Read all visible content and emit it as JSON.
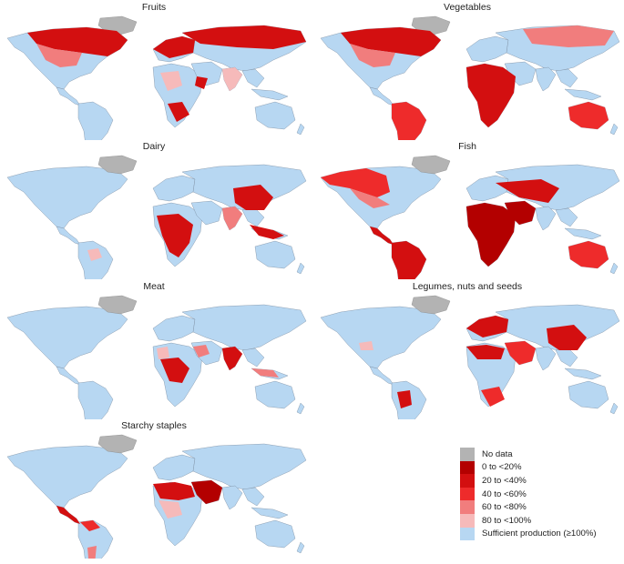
{
  "panels": [
    {
      "title": "Fruits"
    },
    {
      "title": "Vegetables"
    },
    {
      "title": "Dairy"
    },
    {
      "title": "Fish"
    },
    {
      "title": "Meat"
    },
    {
      "title": "Legumes, nuts and seeds"
    },
    {
      "title": "Starchy staples"
    }
  ],
  "legend": {
    "items": [
      {
        "label": "No data",
        "color": "#b3b3b3"
      },
      {
        "label": "0 to <20%",
        "color": "#b30000"
      },
      {
        "label": "20 to <40%",
        "color": "#d30f10"
      },
      {
        "label": "40 to <60%",
        "color": "#ee2b2b"
      },
      {
        "label": "60 to <80%",
        "color": "#f17d7d"
      },
      {
        "label": "80 to <100%",
        "color": "#f6baba"
      },
      {
        "label": "Sufficient production (≥100%)",
        "color": "#b7d7f2"
      }
    ]
  }
}
